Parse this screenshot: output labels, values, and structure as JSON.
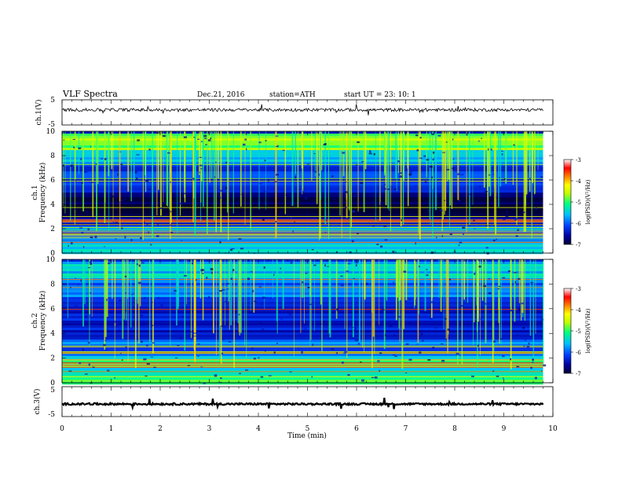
{
  "header": {
    "title": "VLF  Spectra",
    "date": "Dec.21, 2016",
    "station": "station=ATH",
    "start": "start  UT  =    23: 10: 1"
  },
  "colors": {
    "background": "#ffffff",
    "axes": "#000000",
    "colormap": [
      "#000033",
      "#0000a0",
      "#0040ff",
      "#00c0ff",
      "#00ff80",
      "#c0ff00",
      "#ffff00",
      "#ff8000",
      "#ff0000",
      "#ffffff"
    ]
  },
  "chart_data": [
    {
      "type": "line",
      "panel": "ch1-waveform",
      "ylabel": "ch.1(V)",
      "ylim": [
        -5,
        5
      ],
      "yticks": [
        "5",
        "-5"
      ],
      "xlim": [
        0,
        10
      ],
      "series": [
        {
          "approx_level": 1.0,
          "noise_amplitude": 0.6
        }
      ]
    },
    {
      "type": "heatmap",
      "panel": "ch1-spectrogram",
      "ylabel": [
        "ch.1",
        "Frequency (kHz)"
      ],
      "ylim": [
        0,
        10
      ],
      "yticks": [
        "0",
        "2",
        "4",
        "6",
        "8",
        "10"
      ],
      "xlim": [
        0,
        10
      ],
      "x_extent_min": 9.8,
      "colorbar": {
        "label": "log(PSD)(V²/Hz)",
        "range": [
          -7,
          -3
        ],
        "ticks": [
          "-3",
          "-4",
          "-5",
          "-6",
          "-7"
        ]
      },
      "band_levels_kHz_log": [
        [
          0,
          1.0,
          -5.5
        ],
        [
          1.0,
          2.3,
          -6.0
        ],
        [
          2.3,
          3.0,
          -6.4
        ],
        [
          3.0,
          5.0,
          -6.9
        ],
        [
          5.0,
          7.3,
          -6.2
        ],
        [
          7.3,
          8.5,
          -5.7
        ],
        [
          8.5,
          10,
          -5.0
        ]
      ],
      "spike_count": 160
    },
    {
      "type": "heatmap",
      "panel": "ch2-spectrogram",
      "ylabel": [
        "ch.2",
        "Frequency (kHz)"
      ],
      "ylim": [
        0,
        10
      ],
      "yticks": [
        "0",
        "2",
        "4",
        "6",
        "8",
        "10"
      ],
      "xlim": [
        0,
        10
      ],
      "x_extent_min": 9.8,
      "colorbar": {
        "label": "log(PSD)(V²/Hz)",
        "range": [
          -7,
          -3
        ],
        "ticks": [
          "-3",
          "-4",
          "-5",
          "-6",
          "-7"
        ]
      },
      "band_levels_kHz_log": [
        [
          0,
          0.3,
          -5.2
        ],
        [
          0.3,
          2.2,
          -5.4
        ],
        [
          2.2,
          3.6,
          -6.0
        ],
        [
          3.6,
          7.0,
          -6.3
        ],
        [
          7.0,
          8.5,
          -6.0
        ],
        [
          8.5,
          10,
          -5.6
        ]
      ],
      "spike_count": 150
    },
    {
      "type": "line",
      "panel": "ch3-waveform",
      "ylabel": "ch.3(V)",
      "ylim": [
        -5,
        5
      ],
      "yticks": [
        "5",
        "0",
        "-5"
      ],
      "xlim": [
        0,
        10
      ],
      "xlabel": "Time  (min)",
      "xticks": [
        "0",
        "1",
        "2",
        "3",
        "4",
        "5",
        "6",
        "7",
        "8",
        "9",
        "10"
      ],
      "series": [
        {
          "approx_level": -0.8,
          "noise_amplitude": 0.3
        }
      ]
    }
  ]
}
